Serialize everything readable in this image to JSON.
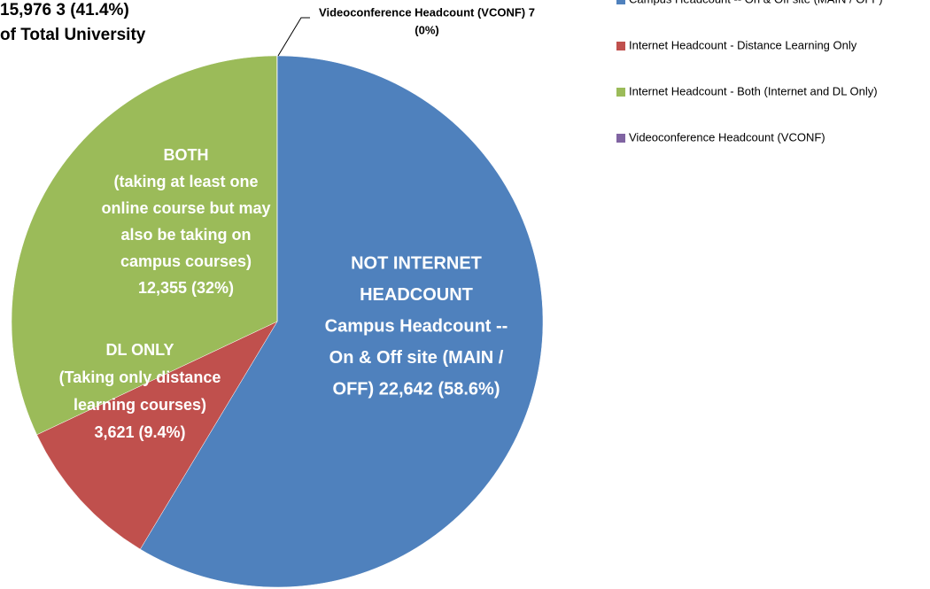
{
  "chart_data": {
    "type": "pie",
    "annotations": [
      "15,976 3 (41.4%)",
      "of Total University"
    ],
    "categories": [
      "Campus Headcount -- On & Off site (MAIN / OFF)",
      "Internet Headcount - Distance Learning Only",
      "Internet Headcount - Both (Internet and DL Only)",
      "Videoconference Headcount (VCONF)"
    ],
    "values": [
      22642,
      3621,
      12355,
      7
    ],
    "colors": [
      "#4f81bd",
      "#c0504d",
      "#9bbb59",
      "#8064a2"
    ],
    "value_labels": [
      [
        "NOT INTERNET",
        "HEADCOUNT",
        "Campus Headcount --",
        "On & Off site (MAIN /",
        "OFF) 22,642 (58.6%)"
      ],
      [
        "DL ONLY",
        "(Taking only distance",
        "learning courses)",
        "3,621 (9.4%)"
      ],
      [
        "BOTH",
        "(taking at least one",
        "online course but may",
        "also be taking on",
        "campus courses)",
        "12,355  (32%)"
      ],
      [
        "Videoconference Headcount (VCONF)  7",
        "(0%)"
      ]
    ],
    "legend": "right"
  }
}
